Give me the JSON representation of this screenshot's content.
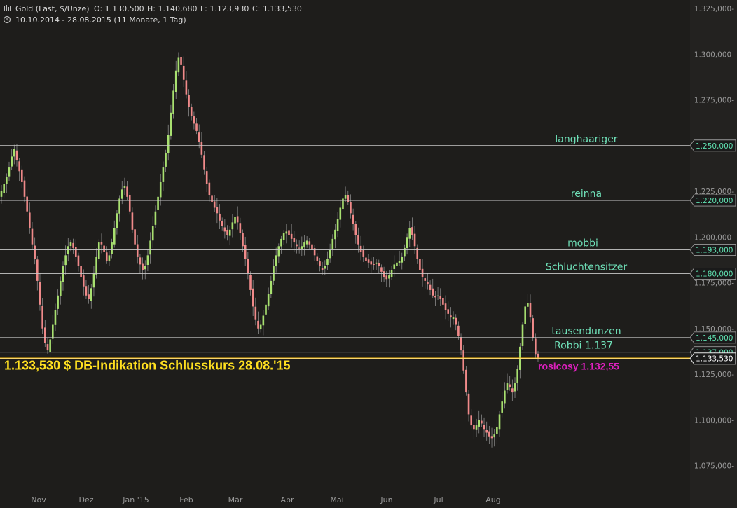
{
  "header": {
    "instrument": "Gold (Last, $/Unze)",
    "open": "O: 1.130,500",
    "high": "H: 1.140,680",
    "low": "L: 1.123,930",
    "close": "C: 1.133,530",
    "period": "10.10.2014 - 28.08.2015 (11 Monate, 1 Tag)"
  },
  "chart_data": {
    "type": "candlestick",
    "x_axis": {
      "labels": [
        "Nov",
        "Dez",
        "Jan '15",
        "Feb",
        "Mär",
        "Apr",
        "Mai",
        "Jun",
        "Jul",
        "Aug"
      ]
    },
    "y_axis": {
      "range": [
        1062,
        1328
      ],
      "ticks": [
        1075,
        1100,
        1125,
        1150,
        1175,
        1200,
        1225,
        1250,
        1275,
        1300,
        1325
      ],
      "tick_labels": [
        "1.075,000-",
        "1.100,000-",
        "1.125,000-",
        "1.150,000-",
        "1.175,000-",
        "1.200,000-",
        "1.225,000-",
        "1.250,000-",
        "1.275,000-",
        "1.300,000-",
        "1.325,000-"
      ],
      "position": "right"
    },
    "grid": false,
    "colors": {
      "up": "#a8e070",
      "down": "#f08a8a",
      "level_line": "#c8c8c8",
      "level_label": "#6fe0b8",
      "close_line": "#f5b800",
      "close_text": "#ffe020",
      "annotation_magenta": "#e020c0"
    },
    "closes": [
      1225,
      1229,
      1233,
      1238,
      1244,
      1248,
      1242,
      1236,
      1230,
      1222,
      1214,
      1205,
      1196,
      1188,
      1176,
      1163,
      1150,
      1142,
      1138,
      1144,
      1152,
      1160,
      1168,
      1176,
      1184,
      1190,
      1195,
      1197,
      1194,
      1189,
      1184,
      1178,
      1173,
      1168,
      1166,
      1172,
      1180,
      1189,
      1197,
      1196,
      1192,
      1187,
      1190,
      1197,
      1205,
      1213,
      1221,
      1226,
      1228,
      1222,
      1214,
      1204,
      1196,
      1189,
      1185,
      1182,
      1184,
      1190,
      1198,
      1206,
      1214,
      1222,
      1230,
      1238,
      1246,
      1256,
      1268,
      1280,
      1291,
      1298,
      1294,
      1286,
      1278,
      1271,
      1266,
      1262,
      1258,
      1252,
      1245,
      1237,
      1229,
      1223,
      1219,
      1216,
      1213,
      1209,
      1206,
      1203,
      1201,
      1204,
      1208,
      1211,
      1208,
      1202,
      1195,
      1188,
      1180,
      1171,
      1162,
      1155,
      1150,
      1152,
      1157,
      1163,
      1169,
      1176,
      1184,
      1190,
      1195,
      1199,
      1202,
      1203,
      1201,
      1199,
      1197,
      1195,
      1194,
      1195,
      1197,
      1198,
      1196,
      1193,
      1190,
      1187,
      1184,
      1182,
      1184,
      1188,
      1193,
      1199,
      1204,
      1210,
      1216,
      1221,
      1223,
      1219,
      1213,
      1207,
      1201,
      1196,
      1192,
      1189,
      1187,
      1186,
      1185,
      1185,
      1186,
      1184,
      1181,
      1178,
      1177,
      1179,
      1182,
      1185,
      1186,
      1187,
      1189,
      1194,
      1200,
      1205,
      1201,
      1195,
      1188,
      1182,
      1178,
      1176,
      1174,
      1171,
      1168,
      1167,
      1168,
      1166,
      1163,
      1160,
      1158,
      1156,
      1156,
      1152,
      1146,
      1138,
      1127,
      1115,
      1103,
      1097,
      1095,
      1097,
      1100,
      1098,
      1095,
      1093,
      1091,
      1090,
      1092,
      1096,
      1103,
      1110,
      1116,
      1120,
      1118,
      1115,
      1120,
      1128,
      1140,
      1152,
      1162,
      1164,
      1156,
      1145,
      1136,
      1134
    ],
    "levels": [
      {
        "name": "langhaariger",
        "value": 1250.0,
        "tag": "1.250,000"
      },
      {
        "name": "reinna",
        "value": 1220.0,
        "tag": "1.220,000"
      },
      {
        "name": "mobbi",
        "value": 1193.0,
        "tag": "1.193,000"
      },
      {
        "name": "Schluchtensitzer",
        "value": 1180.0,
        "tag": "1.180,000"
      },
      {
        "name": "tausendunzen",
        "value": 1145.0,
        "tag": "1.145,000"
      },
      {
        "name": "Robbi 1.137",
        "value": 1137.0,
        "tag": "1.137,000"
      }
    ],
    "close_line": {
      "value": 1133.53,
      "tag": "1.133,530"
    },
    "annotations": {
      "close_label": "1.133,530 $ DB-Indikation Schlusskurs 28.08.'15",
      "rosicosy_label": "rosicosy 1.132,55"
    }
  }
}
